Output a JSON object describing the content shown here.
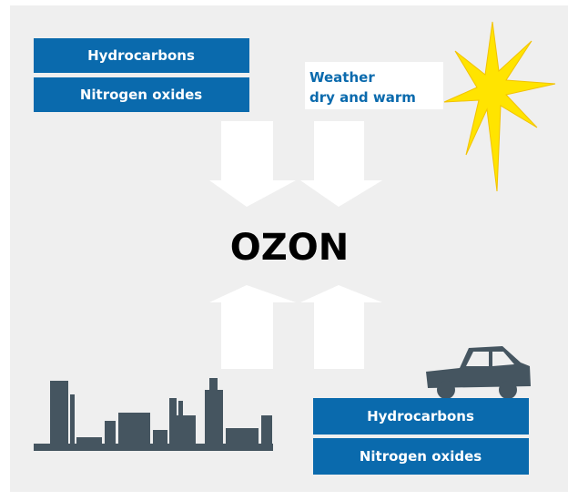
{
  "boxes_top": [
    "Hydrocarbons",
    "Nitrogen oxides"
  ],
  "weather": [
    "Weather",
    "dry and warm"
  ],
  "center": "OZON",
  "boxes_bottom": [
    "Hydrocarbons",
    "Nitrogen oxides"
  ]
}
